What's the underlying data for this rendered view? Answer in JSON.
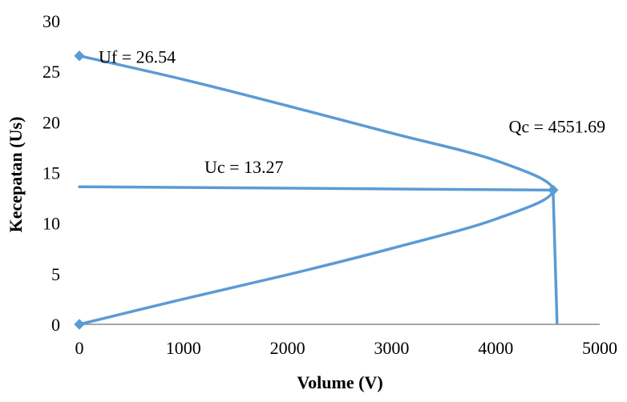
{
  "chart_data": {
    "type": "scatter",
    "xlabel": "Volume (V)",
    "ylabel": "Kecepatan (Us)",
    "xlim": [
      0,
      5000
    ],
    "ylim": [
      0,
      30
    ],
    "x_ticks": [
      "0",
      "1000",
      "2000",
      "3000",
      "4000",
      "5000"
    ],
    "y_ticks": [
      "0",
      "5",
      "10",
      "15",
      "20",
      "25",
      "30"
    ],
    "grid": false,
    "legend": "none",
    "series_color": "#5B9BD5",
    "series": [
      {
        "kind": "curve",
        "points": [
          {
            "x": 0,
            "y": 26.54
          },
          {
            "x": 1000,
            "y": 24.2
          },
          {
            "x": 2000,
            "y": 21.6
          },
          {
            "x": 3000,
            "y": 18.9
          },
          {
            "x": 4000,
            "y": 16.2
          },
          {
            "x": 4551.69,
            "y": 13.27
          },
          {
            "x": 4000,
            "y": 10.4
          },
          {
            "x": 3000,
            "y": 7.5
          },
          {
            "x": 2000,
            "y": 4.9
          },
          {
            "x": 1000,
            "y": 2.5
          },
          {
            "x": 0,
            "y": 0
          }
        ]
      },
      {
        "kind": "line",
        "points": [
          {
            "x": 0,
            "y": 13.6
          },
          {
            "x": 4551.69,
            "y": 13.27
          }
        ]
      },
      {
        "kind": "line",
        "points": [
          {
            "x": 4551.69,
            "y": 13.27
          },
          {
            "x": 4590,
            "y": 0.1
          }
        ]
      }
    ],
    "markers": [
      {
        "x": 0,
        "y": 26.54
      },
      {
        "x": 4551.69,
        "y": 13.27
      },
      {
        "x": 0,
        "y": 0
      }
    ],
    "annotations": [
      {
        "id": "uf",
        "text": "Uf = 26.54",
        "x": 0,
        "y": 26.54
      },
      {
        "id": "uc",
        "text": "Uc = 13.27",
        "x": 0,
        "y": 13.6
      },
      {
        "id": "qc",
        "text": "Qc = 4551.69",
        "x": 4551.69,
        "y": 13.27
      }
    ]
  }
}
